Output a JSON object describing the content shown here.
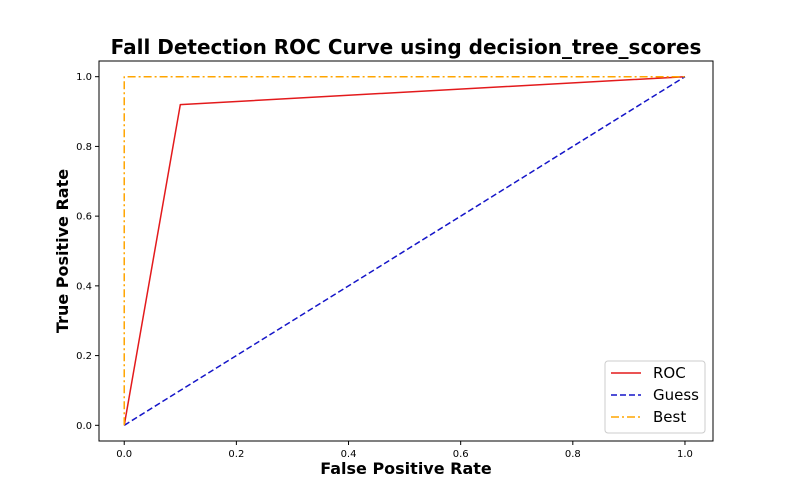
{
  "chart_data": {
    "type": "line",
    "title": "Fall Detection ROC Curve using decision_tree_scores",
    "xlabel": "False Positive Rate",
    "ylabel": "True Positive Rate",
    "xlim": [
      -0.045,
      1.05
    ],
    "ylim": [
      -0.045,
      1.045
    ],
    "xticks": [
      0.0,
      0.2,
      0.4,
      0.6,
      0.8,
      1.0
    ],
    "yticks": [
      0.0,
      0.2,
      0.4,
      0.6,
      0.8,
      1.0
    ],
    "xtick_labels": [
      "0.0",
      "0.2",
      "0.4",
      "0.6",
      "0.8",
      "1.0"
    ],
    "ytick_labels": [
      "0.0",
      "0.2",
      "0.4",
      "0.6",
      "0.8",
      "1.0"
    ],
    "grid": false,
    "legend_position": "lower-right",
    "series": [
      {
        "name": "ROC",
        "color": "#e31a1c",
        "style": "solid",
        "x": [
          0.0,
          0.1,
          1.0
        ],
        "y": [
          0.0,
          0.92,
          1.0
        ]
      },
      {
        "name": "Guess",
        "color": "#1515c8",
        "style": "dashed",
        "x": [
          0.0,
          1.0
        ],
        "y": [
          0.0,
          1.0
        ]
      },
      {
        "name": "Best",
        "color": "#ffa500",
        "style": "dashdot",
        "x": [
          0.0,
          0.0,
          1.0
        ],
        "y": [
          0.0,
          1.0,
          1.0
        ]
      }
    ]
  }
}
